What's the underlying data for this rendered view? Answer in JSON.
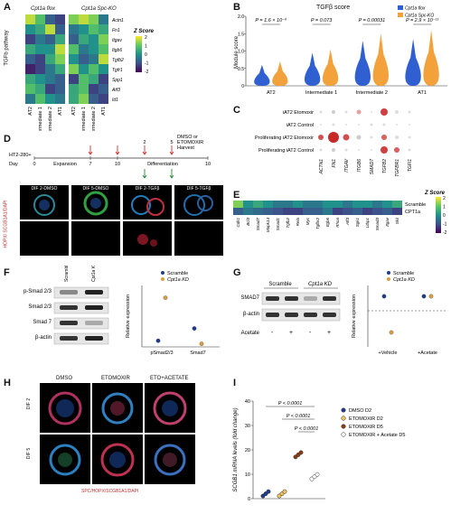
{
  "panel_labels": {
    "A": "A",
    "B": "B",
    "C": "C",
    "D": "D",
    "E": "E",
    "F": "F",
    "G": "G",
    "H": "H",
    "I": "I"
  },
  "panelA": {
    "col_groups": [
      "Cpt1a flox",
      "Cpt1a Spc-KO"
    ],
    "row_axis_label": "TGFb pathway",
    "genes": [
      "Actn1",
      "Fn1",
      "Itgav",
      "Itgb6",
      "Tgfb2",
      "Tgfr1",
      "Spp1",
      "Atf3",
      "Id1"
    ],
    "columns": [
      "AT2",
      "Intermediate 1",
      "Intermediate 2",
      "AT1",
      "AT2",
      "Intermediate 1",
      "Intermediate 2",
      "AT1"
    ],
    "legend_title": "Z Score",
    "legend_ticks": [
      "2",
      "1",
      "0",
      "-1",
      "-2"
    ]
  },
  "panelB": {
    "chart_data": {
      "type": "violin",
      "title": "TGFβ score",
      "ylabel": "Module score",
      "ylim": [
        0,
        2.0
      ],
      "yticks": [
        "0",
        "0.5",
        "1.0",
        "1.5",
        "2.0"
      ],
      "categories": [
        "AT2",
        "Intermediate 1",
        "Intermediate 2",
        "AT1"
      ],
      "series": [
        {
          "name": "Cpt1a flox",
          "color": "#2f5fd0"
        },
        {
          "name": "Cpt1a Spc-KO",
          "color": "#f3a13a"
        }
      ],
      "annotations": [
        "P = 1.6 × 10⁻⁶",
        "P = 0.073",
        "P = 0.00031",
        "P = 2.9 × 10⁻¹¹"
      ]
    }
  },
  "panelC": {
    "rows": [
      "iAT2 Etomoxir",
      "iAT2 Control",
      "Proliferating iAT2 Etomoxir",
      "Proliferating iAT2 Control"
    ],
    "genes": [
      "ACTN1",
      "FN1",
      "ITGAV",
      "ITGB6",
      "SMAD7",
      "TGFB2",
      "TGFBR1",
      "TGFI1"
    ]
  },
  "panelD": {
    "timeline_start": "HT2-280+",
    "day_label": "Day",
    "days": [
      "0",
      "7",
      "10",
      "10"
    ],
    "phases": [
      "Expansion",
      "Differentiation"
    ],
    "treatment_lines": [
      "DMSO or",
      "ETOMOXIR",
      "Harvest"
    ],
    "marker_days": [
      "2",
      "5"
    ],
    "image_captions": [
      "DIF 2-DMSO",
      "DIF 5-DMSO",
      "DIF 2-TGFβ",
      "DIF 5-TGFβ"
    ],
    "stain_label": "HOPX/ SCGB1A1/DAPI"
  },
  "panelE": {
    "legend_title": "Z Score",
    "legend_ticks": [
      "2",
      "1",
      "0",
      "-1",
      "-2"
    ],
    "rows": [
      "Scramble",
      "CPT1a"
    ],
    "genes": [
      "Cdk1",
      "Bcl3",
      "Smad7",
      "Mapk14",
      "Smad1",
      "Tgfb2",
      "Rela",
      "Myc",
      "Tgfbr2",
      "Itgb6",
      "Rhoa",
      "Atf3",
      "Sgk1",
      "Ltbp1",
      "Smad3",
      "Itgav",
      "Skil"
    ]
  },
  "panelF": {
    "lanes": [
      "Scramble",
      "Cpt1a KD"
    ],
    "blot_labels": [
      "p-Smad 2/3",
      "Smad 2/3",
      "Smad 7",
      "β-actin"
    ],
    "chart_data": {
      "type": "scatter",
      "ylabel": "Relative expression",
      "categories": [
        "pSmad2/3",
        "Smad7"
      ],
      "series": [
        {
          "name": "Scramble",
          "color": "#1f3c8a",
          "values": [
            1.0,
            3.0
          ]
        },
        {
          "name": "Cpt1a KD",
          "color": "#d8a040",
          "values": [
            8.0,
            0.5
          ]
        }
      ]
    }
  },
  "panelG": {
    "lane_groups": [
      "Scramble",
      "Cpt1a KD"
    ],
    "blot_labels": [
      "SMAD7",
      "β-actin"
    ],
    "acetate_label": "Acetate",
    "acetate_signs": [
      "-",
      "+",
      "-",
      "+"
    ],
    "chart_data": {
      "type": "scatter",
      "ylabel": "Relative expression",
      "categories": [
        "+Vehicle",
        "+Acetate"
      ],
      "series": [
        {
          "name": "Scramble",
          "color": "#1f3c8a",
          "values": [
            1.0,
            1.0
          ]
        },
        {
          "name": "Cpt1a KD",
          "color": "#d8a040",
          "values": [
            -1.5,
            1.0
          ]
        }
      ]
    }
  },
  "panelH": {
    "columns": [
      "DMSO",
      "ETOMOXIR",
      "ETO+ACETATE"
    ],
    "rows": [
      "DIF 2",
      "DIF 5"
    ],
    "stain_label": "SPC/HOPX/SCGB1A1/DAPI"
  },
  "panelI": {
    "chart_data": {
      "type": "scatter",
      "ylabel": "SCGB1 mRNA levels (fold change)",
      "ylim": [
        0,
        40
      ],
      "yticks": [
        "0",
        "10",
        "20",
        "30",
        "40"
      ],
      "series": [
        {
          "name": "DMSO D2",
          "color": "#1f3c8a",
          "value": 2
        },
        {
          "name": "ETOMOXIR D2",
          "color": "#f0c060",
          "value": 2
        },
        {
          "name": "ETOMOXIR D5",
          "color": "#8a3a10",
          "value": 18
        },
        {
          "name": "ETOMOXIR + Acetate D5",
          "color": "#ffffff",
          "value": 9
        }
      ],
      "annotations": [
        "P < 0.0001",
        "P < 0.0001",
        "P < 0.0001"
      ]
    }
  }
}
